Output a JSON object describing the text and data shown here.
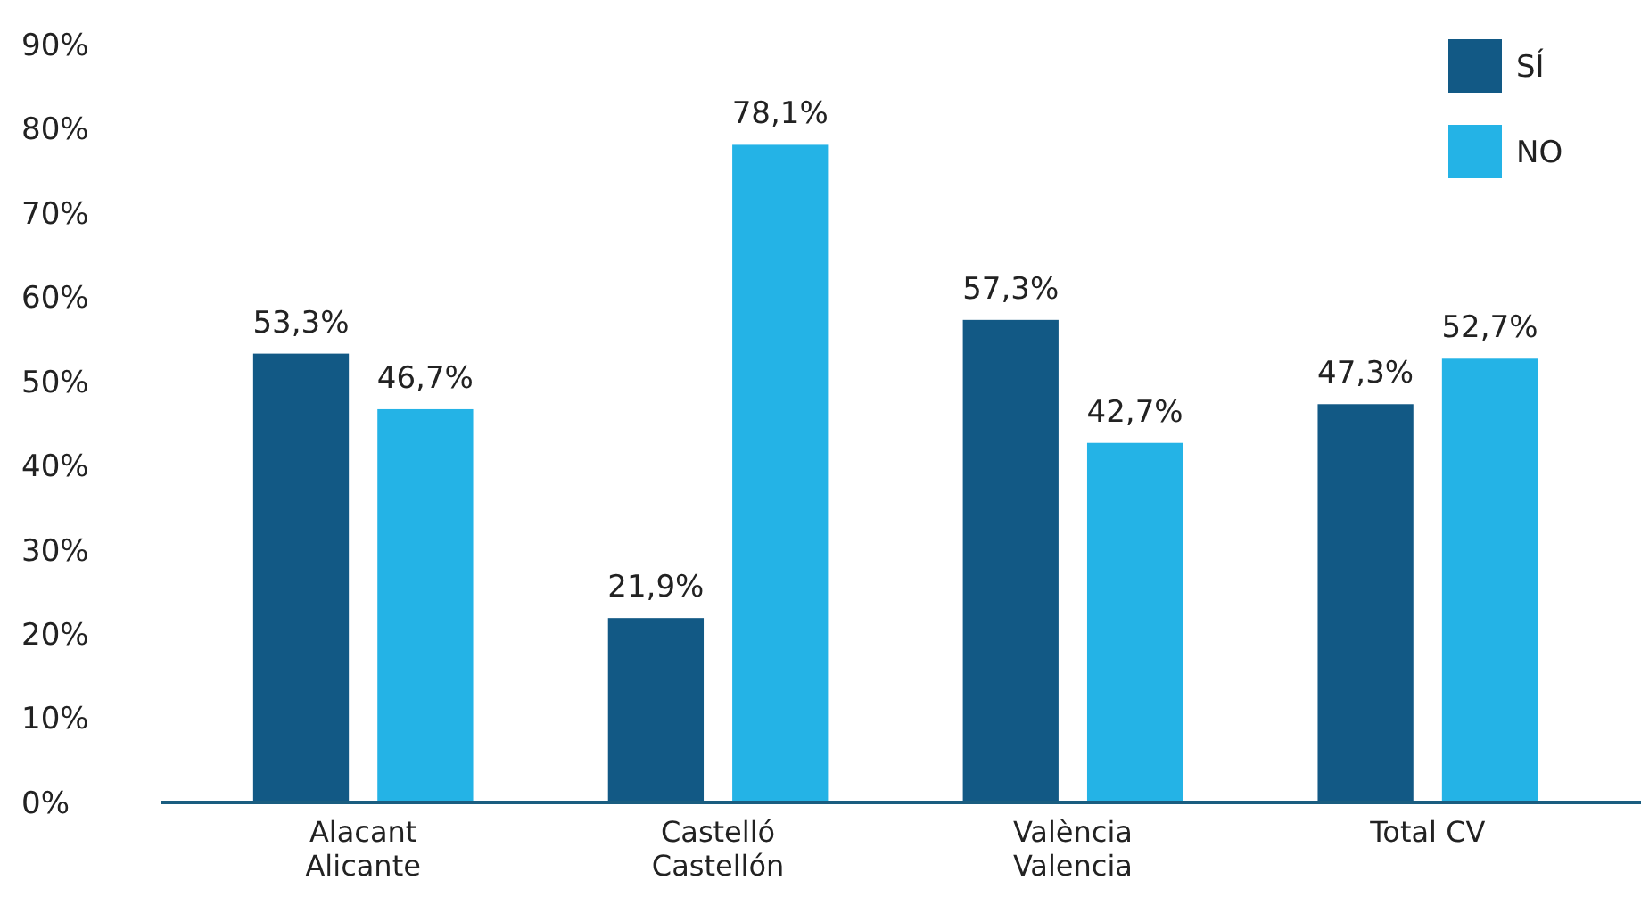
{
  "chart_data": {
    "type": "bar",
    "categories": [
      "Alacant\nAlicante",
      "Castelló\nCastellón",
      "València\nValencia",
      "Total CV"
    ],
    "series": [
      {
        "name": "SÍ",
        "color": "#125985",
        "values": [
          53.3,
          21.9,
          57.3,
          47.3
        ],
        "value_labels": [
          "53,3%",
          "21,9%",
          "57,3%",
          "47,3%"
        ]
      },
      {
        "name": "NO",
        "color": "#24b3e6",
        "values": [
          46.7,
          78.1,
          42.7,
          52.7
        ],
        "value_labels": [
          "46,7%",
          "78,1%",
          "42,7%",
          "52,7%"
        ]
      }
    ],
    "ylim": [
      0,
      90
    ],
    "yticks": [
      {
        "value": 0,
        "label": "0%"
      },
      {
        "value": 10,
        "label": "10%"
      },
      {
        "value": 20,
        "label": "20%"
      },
      {
        "value": 30,
        "label": "30%"
      },
      {
        "value": 40,
        "label": "40%"
      },
      {
        "value": 50,
        "label": "50%"
      },
      {
        "value": 60,
        "label": "60%"
      },
      {
        "value": 70,
        "label": "70%"
      },
      {
        "value": 80,
        "label": "80%"
      },
      {
        "value": 90,
        "label": "90%"
      }
    ],
    "grid": false,
    "legend": "top right"
  }
}
